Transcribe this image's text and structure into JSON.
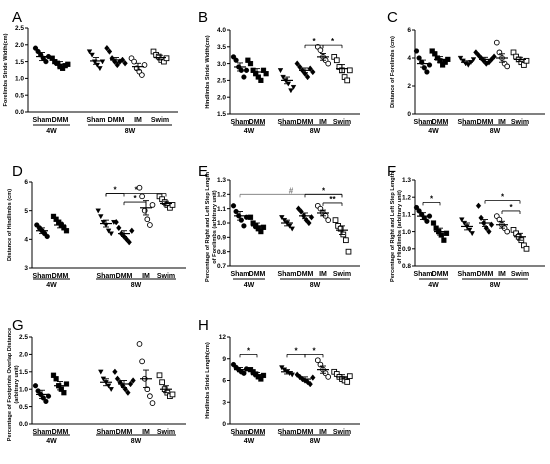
{
  "chart_data": [
    {
      "type": "scatter",
      "panel": "A",
      "ylabel": "Forelimbs Stride Width(cm)",
      "ylim": [
        0,
        2.5
      ],
      "yticks": [
        "0.0",
        "0.5",
        "1.0",
        "1.5",
        "2.0",
        "2.5"
      ],
      "categories": [
        "Sham",
        "DMM",
        "Sham",
        "DMM",
        "IM",
        "Swim"
      ],
      "groups": [
        {
          "label": "4W",
          "members": [
            0,
            1
          ]
        },
        {
          "label": "8W",
          "members": [
            2,
            3,
            4,
            5
          ]
        }
      ],
      "marker_styles": [
        "filled-circle",
        "filled-square",
        "filled-triangle-down",
        "filled-diamond",
        "open-circle",
        "open-square"
      ],
      "series": [
        {
          "mean": 1.65,
          "sem": 0.12,
          "points": [
            1.9,
            1.8,
            1.7,
            1.6,
            1.5,
            1.65
          ]
        },
        {
          "mean": 1.42,
          "sem": 0.08,
          "points": [
            1.6,
            1.5,
            1.45,
            1.35,
            1.3,
            1.38,
            1.42
          ]
        },
        {
          "mean": 1.52,
          "sem": 0.1,
          "points": [
            1.8,
            1.7,
            1.5,
            1.4,
            1.3,
            1.5
          ]
        },
        {
          "mean": 1.55,
          "sem": 0.07,
          "points": [
            1.9,
            1.8,
            1.6,
            1.5,
            1.4,
            1.5,
            1.55,
            1.45
          ]
        },
        {
          "mean": 1.35,
          "sem": 0.1,
          "points": [
            1.6,
            1.5,
            1.3,
            1.2,
            1.1,
            1.4
          ]
        },
        {
          "mean": 1.62,
          "sem": 0.07,
          "points": [
            1.8,
            1.7,
            1.65,
            1.55,
            1.5,
            1.6
          ]
        }
      ],
      "significance": []
    },
    {
      "type": "scatter",
      "panel": "B",
      "ylabel": "Hindlimbs Stride Width(cm)",
      "ylim": [
        1.5,
        4.0
      ],
      "yticks": [
        "1.5",
        "2.0",
        "2.5",
        "3.0",
        "3.5",
        "4.0"
      ],
      "categories": [
        "Sham",
        "DMM",
        "Sham",
        "DMM",
        "IM",
        "Swim"
      ],
      "groups": [
        {
          "label": "4W",
          "members": [
            0,
            1
          ]
        },
        {
          "label": "8W",
          "members": [
            2,
            3,
            4,
            5
          ]
        }
      ],
      "marker_styles": [
        "filled-circle",
        "filled-square",
        "filled-triangle-down",
        "filled-diamond",
        "open-circle",
        "open-square"
      ],
      "series": [
        {
          "mean": 2.9,
          "sem": 0.12,
          "points": [
            3.2,
            3.1,
            2.9,
            2.8,
            2.6,
            2.8
          ]
        },
        {
          "mean": 2.75,
          "sem": 0.1,
          "points": [
            3.1,
            3.0,
            2.8,
            2.7,
            2.6,
            2.5,
            2.8,
            2.7
          ]
        },
        {
          "mean": 2.5,
          "sem": 0.1,
          "points": [
            2.8,
            2.6,
            2.5,
            2.4,
            2.2,
            2.3
          ]
        },
        {
          "mean": 2.8,
          "sem": 0.07,
          "points": [
            3.0,
            2.9,
            2.8,
            2.7,
            2.6,
            2.85,
            2.75
          ]
        },
        {
          "mean": 3.2,
          "sem": 0.1,
          "points": [
            3.5,
            3.4,
            3.2,
            3.1,
            3.0
          ]
        },
        {
          "mean": 2.85,
          "sem": 0.12,
          "points": [
            3.2,
            3.1,
            2.9,
            2.8,
            2.6,
            2.5,
            2.8
          ]
        }
      ],
      "significance": [
        {
          "from": 3,
          "to": 4,
          "label": "*",
          "y": 3.55
        },
        {
          "from": 4,
          "to": 5,
          "label": "*",
          "y": 3.55
        }
      ]
    },
    {
      "type": "scatter",
      "panel": "C",
      "ylabel": "Distance of Forelimbs (cm)",
      "ylim": [
        0,
        6
      ],
      "yticks": [
        "0",
        "2",
        "4",
        "6"
      ],
      "categories": [
        "Sham",
        "DMM",
        "Sham",
        "DMM",
        "IM",
        "Swim"
      ],
      "groups": [
        {
          "label": "4W",
          "members": [
            0,
            1
          ]
        },
        {
          "label": "8W",
          "members": [
            2,
            3,
            4,
            5
          ]
        }
      ],
      "marker_styles": [
        "filled-circle",
        "filled-square",
        "filled-triangle-down",
        "filled-diamond",
        "open-circle",
        "open-square"
      ],
      "series": [
        {
          "mean": 3.6,
          "sem": 0.25,
          "points": [
            4.5,
            4.0,
            3.7,
            3.3,
            3.0,
            3.5
          ]
        },
        {
          "mean": 3.9,
          "sem": 0.2,
          "points": [
            4.5,
            4.3,
            4.0,
            3.8,
            3.5,
            3.7,
            3.9
          ]
        },
        {
          "mean": 3.7,
          "sem": 0.1,
          "points": [
            4.0,
            3.8,
            3.6,
            3.5,
            3.7,
            3.9
          ]
        },
        {
          "mean": 3.9,
          "sem": 0.15,
          "points": [
            4.4,
            4.2,
            4.0,
            3.8,
            3.6,
            3.7,
            3.9,
            4.1
          ]
        },
        {
          "mean": 4.0,
          "sem": 0.3,
          "points": [
            5.1,
            4.4,
            4.0,
            3.6,
            3.4
          ]
        },
        {
          "mean": 3.9,
          "sem": 0.15,
          "points": [
            4.4,
            4.1,
            3.9,
            3.7,
            3.5,
            3.8
          ]
        }
      ],
      "significance": []
    },
    {
      "type": "scatter",
      "panel": "D",
      "ylabel": "Distance of Hindlimbs (cm)",
      "ylim": [
        3,
        6
      ],
      "yticks": [
        "3",
        "4",
        "5",
        "6"
      ],
      "categories": [
        "Sham",
        "DMM",
        "Sham",
        "DMM",
        "IM",
        "Swim"
      ],
      "groups": [
        {
          "label": "4W",
          "members": [
            0,
            1
          ]
        },
        {
          "label": "8W",
          "members": [
            2,
            3,
            4,
            5
          ]
        }
      ],
      "marker_styles": [
        "filled-circle",
        "filled-square",
        "filled-triangle-down",
        "filled-diamond",
        "open-circle",
        "open-square"
      ],
      "series": [
        {
          "mean": 4.3,
          "sem": 0.1,
          "points": [
            4.5,
            4.4,
            4.3,
            4.2,
            4.1
          ]
        },
        {
          "mean": 4.5,
          "sem": 0.1,
          "points": [
            4.8,
            4.7,
            4.6,
            4.5,
            4.4,
            4.3
          ]
        },
        {
          "mean": 4.55,
          "sem": 0.12,
          "points": [
            5.0,
            4.8,
            4.6,
            4.5,
            4.3,
            4.2,
            4.6
          ]
        },
        {
          "mean": 4.2,
          "sem": 0.1,
          "points": [
            4.6,
            4.4,
            4.2,
            4.1,
            4.0,
            3.9,
            4.3
          ]
        },
        {
          "mean": 5.1,
          "sem": 0.25,
          "points": [
            5.8,
            5.5,
            5.0,
            4.7,
            4.5,
            5.2
          ]
        },
        {
          "mean": 5.25,
          "sem": 0.08,
          "points": [
            5.5,
            5.4,
            5.3,
            5.2,
            5.1,
            5.2
          ]
        }
      ],
      "significance": [
        {
          "from": 2,
          "to": 3,
          "label": "*",
          "y": 5.6
        },
        {
          "from": 2,
          "to": 5,
          "label": "*",
          "y": 5.6
        },
        {
          "from": 3,
          "to": 4,
          "label": "*",
          "y": 5.3
        }
      ]
    },
    {
      "type": "scatter",
      "panel": "E",
      "ylabel": "Percentage of Right and Left Step Length of Forelimbs (arbitrary unit)",
      "ylim": [
        0.7,
        1.3
      ],
      "yticks": [
        "0.7",
        "0.8",
        "0.9",
        "1.0",
        "1.1",
        "1.2",
        "1.3"
      ],
      "categories": [
        "Sham",
        "DMM",
        "Sham",
        "DMM",
        "IM",
        "Swim"
      ],
      "groups": [
        {
          "label": "4W",
          "members": [
            0,
            1
          ]
        },
        {
          "label": "8W",
          "members": [
            2,
            3,
            4,
            5
          ]
        }
      ],
      "marker_styles": [
        "filled-circle",
        "filled-square",
        "filled-triangle-down",
        "filled-diamond",
        "open-circle",
        "open-square"
      ],
      "series": [
        {
          "mean": 1.05,
          "sem": 0.03,
          "points": [
            1.12,
            1.08,
            1.05,
            1.02,
            0.98,
            1.04
          ]
        },
        {
          "mean": 0.98,
          "sem": 0.02,
          "points": [
            1.04,
            1.0,
            0.98,
            0.96,
            0.94,
            0.97
          ]
        },
        {
          "mean": 1.0,
          "sem": 0.02,
          "points": [
            1.04,
            1.02,
            1.0,
            0.98,
            0.96
          ]
        },
        {
          "mean": 1.05,
          "sem": 0.02,
          "points": [
            1.1,
            1.08,
            1.05,
            1.02,
            1.0,
            1.04
          ]
        },
        {
          "mean": 1.07,
          "sem": 0.02,
          "points": [
            1.12,
            1.1,
            1.07,
            1.05,
            1.02
          ]
        },
        {
          "mean": 0.95,
          "sem": 0.03,
          "points": [
            1.02,
            0.98,
            0.96,
            0.92,
            0.88,
            0.8
          ]
        }
      ],
      "significance": [
        {
          "from": 0,
          "to": 5,
          "label": "#",
          "y": 1.2
        },
        {
          "from": 3,
          "to": 5,
          "label": "*",
          "y": 1.2
        },
        {
          "from": 4,
          "to": 5,
          "label": "**",
          "y": 1.14
        }
      ]
    },
    {
      "type": "scatter",
      "panel": "F",
      "ylabel": "Percentage of Right and Left Step Length of Hindlimbs (arbitrary unit)",
      "ylim": [
        0.8,
        1.3
      ],
      "yticks": [
        "0.8",
        "0.9",
        "1.0",
        "1.1",
        "1.2",
        "1.3"
      ],
      "categories": [
        "Sham",
        "DMM",
        "Sham",
        "DMM",
        "IM",
        "Swim"
      ],
      "groups": [
        {
          "label": "4W",
          "members": [
            0,
            1
          ]
        },
        {
          "label": "8W",
          "members": [
            2,
            3,
            4,
            5
          ]
        }
      ],
      "marker_styles": [
        "filled-circle",
        "filled-square",
        "filled-triangle-down",
        "filled-diamond",
        "open-circle",
        "open-square"
      ],
      "series": [
        {
          "mean": 1.09,
          "sem": 0.02,
          "points": [
            1.14,
            1.12,
            1.1,
            1.08,
            1.06,
            1.09
          ]
        },
        {
          "mean": 1.0,
          "sem": 0.02,
          "points": [
            1.05,
            1.02,
            1.0,
            0.98,
            0.95,
            0.99
          ]
        },
        {
          "mean": 1.03,
          "sem": 0.02,
          "points": [
            1.07,
            1.05,
            1.03,
            1.01,
            0.99
          ]
        },
        {
          "mean": 1.05,
          "sem": 0.02,
          "points": [
            1.15,
            1.08,
            1.05,
            1.02,
            1.0,
            1.04
          ]
        },
        {
          "mean": 1.04,
          "sem": 0.02,
          "points": [
            1.09,
            1.07,
            1.04,
            1.02,
            1.0
          ]
        },
        {
          "mean": 0.97,
          "sem": 0.02,
          "points": [
            1.01,
            0.99,
            0.97,
            0.95,
            0.92,
            0.9
          ]
        }
      ],
      "significance": [
        {
          "from": 0,
          "to": 1,
          "label": "*",
          "y": 1.17
        },
        {
          "from": 3,
          "to": 5,
          "label": "*",
          "y": 1.18
        },
        {
          "from": 4,
          "to": 5,
          "label": "*",
          "y": 1.12
        }
      ]
    },
    {
      "type": "scatter",
      "panel": "G",
      "ylabel": "Percentage of Footprints Overlap Distance (arbitrary unit)",
      "ylim": [
        0,
        2.5
      ],
      "yticks": [
        "0.0",
        "0.5",
        "1.0",
        "1.5",
        "2.0",
        "2.5"
      ],
      "categories": [
        "Sham",
        "DMM",
        "Sham",
        "DMM",
        "IM",
        "Swim"
      ],
      "groups": [
        {
          "label": "4W",
          "members": [
            0,
            1
          ]
        },
        {
          "label": "8W",
          "members": [
            2,
            3,
            4,
            5
          ]
        }
      ],
      "marker_styles": [
        "filled-circle",
        "filled-square",
        "filled-triangle-down",
        "filled-diamond",
        "open-circle",
        "open-square"
      ],
      "series": [
        {
          "mean": 0.85,
          "sem": 0.12,
          "points": [
            1.1,
            0.95,
            0.85,
            0.75,
            0.65,
            0.8
          ]
        },
        {
          "mean": 1.1,
          "sem": 0.12,
          "points": [
            1.4,
            1.3,
            1.1,
            1.0,
            0.9,
            1.15
          ]
        },
        {
          "mean": 1.2,
          "sem": 0.1,
          "points": [
            1.5,
            1.3,
            1.2,
            1.1,
            1.0
          ]
        },
        {
          "mean": 1.15,
          "sem": 0.1,
          "points": [
            1.5,
            1.3,
            1.2,
            1.1,
            1.0,
            0.9,
            1.15,
            1.25
          ]
        },
        {
          "mean": 1.3,
          "sem": 0.25,
          "points": [
            2.3,
            1.8,
            1.3,
            1.0,
            0.8,
            0.6
          ]
        },
        {
          "mean": 1.0,
          "sem": 0.1,
          "points": [
            1.4,
            1.2,
            1.0,
            0.9,
            0.8,
            0.85
          ]
        }
      ],
      "significance": []
    },
    {
      "type": "scatter",
      "panel": "H",
      "ylabel": "Hindlimbs Stride Length(cm)",
      "ylim": [
        0,
        12
      ],
      "yticks": [
        "0",
        "3",
        "6",
        "9",
        "12"
      ],
      "categories": [
        "Sham",
        "DMM",
        "Sham",
        "DMM",
        "IM",
        "Swim"
      ],
      "groups": [
        {
          "label": "4W",
          "members": [
            0,
            1
          ]
        },
        {
          "label": "8W",
          "members": [
            2,
            3,
            4,
            5
          ]
        }
      ],
      "marker_styles": [
        "filled-circle",
        "filled-square",
        "filled-triangle-down",
        "filled-diamond",
        "open-circle",
        "open-square"
      ],
      "series": [
        {
          "mean": 7.5,
          "sem": 0.3,
          "points": [
            8.2,
            7.8,
            7.5,
            7.2,
            7.0,
            7.6
          ]
        },
        {
          "mean": 6.8,
          "sem": 0.3,
          "points": [
            7.5,
            7.2,
            6.9,
            6.5,
            6.2,
            6.7
          ]
        },
        {
          "mean": 7.2,
          "sem": 0.3,
          "points": [
            7.8,
            7.5,
            7.2,
            7.0,
            6.8
          ]
        },
        {
          "mean": 6.2,
          "sem": 0.3,
          "points": [
            6.8,
            6.5,
            6.2,
            6.0,
            5.8,
            5.5,
            6.4
          ]
        },
        {
          "mean": 7.5,
          "sem": 0.5,
          "points": [
            8.8,
            8.2,
            7.5,
            7.0,
            6.5
          ]
        },
        {
          "mean": 6.5,
          "sem": 0.3,
          "points": [
            7.2,
            6.9,
            6.5,
            6.2,
            6.0,
            5.8,
            6.6
          ]
        }
      ],
      "significance": [
        {
          "from": 0,
          "to": 1,
          "label": "*",
          "y": 9.6
        },
        {
          "from": 2,
          "to": 3,
          "label": "*",
          "y": 9.6
        },
        {
          "from": 3,
          "to": 4,
          "label": "*",
          "y": 9.6
        }
      ]
    }
  ]
}
